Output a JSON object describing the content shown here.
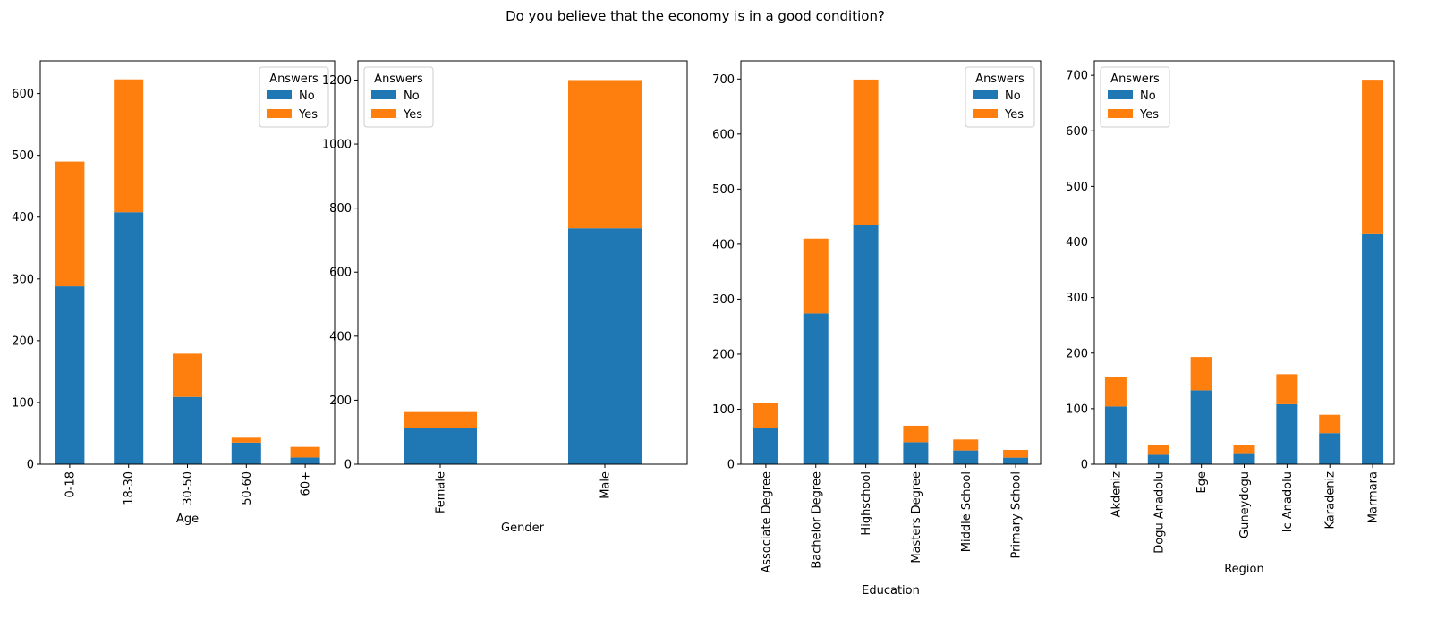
{
  "figure": {
    "title": "Do you believe that the economy is in a good condition?"
  },
  "legend_title": "Answers",
  "colors": {
    "No": "#1f77b4",
    "Yes": "#ff7f0e"
  },
  "chart_data": [
    {
      "type": "bar",
      "stacked": true,
      "xlabel": "Age",
      "ylabel": "",
      "categories": [
        "0-18",
        "18-30",
        "30-50",
        "50-60",
        "60+"
      ],
      "series": [
        {
          "name": "No",
          "values": [
            288,
            408,
            109,
            35,
            11
          ]
        },
        {
          "name": "Yes",
          "values": [
            202,
            215,
            70,
            8,
            17
          ]
        }
      ],
      "ylim": [
        0,
        653
      ],
      "yticks": [
        0,
        100,
        200,
        300,
        400,
        500,
        600
      ],
      "legend": {
        "title": "Answers",
        "position": "top-right"
      }
    },
    {
      "type": "bar",
      "stacked": true,
      "xlabel": "Gender",
      "ylabel": "",
      "categories": [
        "Female",
        "Male"
      ],
      "series": [
        {
          "name": "No",
          "values": [
            113,
            737
          ]
        },
        {
          "name": "Yes",
          "values": [
            50,
            463
          ]
        }
      ],
      "ylim": [
        0,
        1260
      ],
      "yticks": [
        0,
        200,
        400,
        600,
        800,
        1000,
        1200
      ],
      "legend": {
        "title": "Answers",
        "position": "top-left"
      }
    },
    {
      "type": "bar",
      "stacked": true,
      "xlabel": "Education",
      "ylabel": "",
      "categories": [
        "Associate Degree",
        "Bachelor Degree",
        "Highschool",
        "Masters Degree",
        "Middle School",
        "Primary School"
      ],
      "series": [
        {
          "name": "No",
          "values": [
            66,
            274,
            434,
            40,
            25,
            12
          ]
        },
        {
          "name": "Yes",
          "values": [
            45,
            136,
            265,
            30,
            20,
            14
          ]
        }
      ],
      "ylim": [
        0,
        733
      ],
      "yticks": [
        0,
        100,
        200,
        300,
        400,
        500,
        600,
        700
      ],
      "legend": {
        "title": "Answers",
        "position": "top-right"
      }
    },
    {
      "type": "bar",
      "stacked": true,
      "xlabel": "Region",
      "ylabel": "",
      "categories": [
        "Akdeniz",
        "Dogu Anadolu",
        "Ege",
        "Guneydogu",
        "Ic Anadolu",
        "Karadeniz",
        "Marmara"
      ],
      "series": [
        {
          "name": "No",
          "values": [
            104,
            17,
            133,
            20,
            108,
            56,
            414
          ]
        },
        {
          "name": "Yes",
          "values": [
            53,
            17,
            60,
            15,
            54,
            33,
            278
          ]
        }
      ],
      "ylim": [
        0,
        726
      ],
      "yticks": [
        0,
        100,
        200,
        300,
        400,
        500,
        600,
        700
      ],
      "legend": {
        "title": "Answers",
        "position": "top-left"
      }
    }
  ]
}
